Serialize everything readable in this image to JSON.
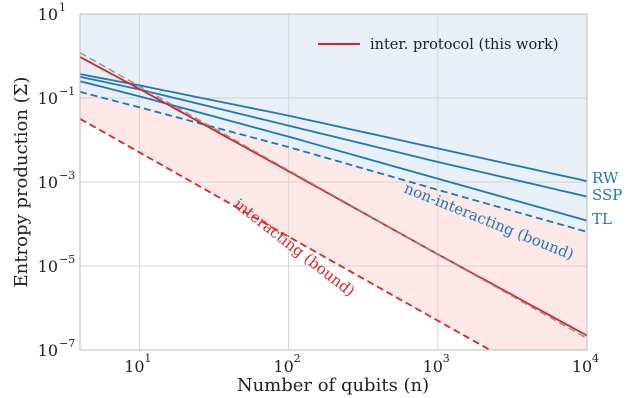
{
  "chart_data": {
    "type": "line",
    "xlabel": "Number of qubits (n)",
    "ylabel": "Entropy production (Σ)",
    "xscale": "log",
    "yscale": "log",
    "xlim": [
      4,
      10000
    ],
    "ylim": [
      1e-07,
      10
    ],
    "grid": true,
    "legend_position": "top-right",
    "x_ticks": [
      {
        "base": "10",
        "exp": "1",
        "value": 10
      },
      {
        "base": "10",
        "exp": "2",
        "value": 100
      },
      {
        "base": "10",
        "exp": "3",
        "value": 1000
      },
      {
        "base": "10",
        "exp": "4",
        "value": 10000
      }
    ],
    "y_ticks": [
      {
        "base": "10",
        "exp": "1",
        "value": 10
      },
      {
        "base": "10",
        "exp": "−1",
        "value": 0.1
      },
      {
        "base": "10",
        "exp": "−3",
        "value": 0.001
      },
      {
        "base": "10",
        "exp": "−5",
        "value": 1e-05
      },
      {
        "base": "10",
        "exp": "−7",
        "value": 1e-07
      }
    ],
    "legend": [
      {
        "label": "inter. protocol (this work)",
        "color": "#d62728"
      }
    ],
    "colors": {
      "blue": "#1f77b4",
      "red": "#d62728",
      "blue_fill": "#e8eff6",
      "red_fill": "#fde8e8",
      "gray": "#8c8c8c"
    },
    "series": [
      {
        "name": "RW",
        "color": "#1f77b4",
        "style": "solid",
        "x": [
          4,
          10,
          100,
          1000,
          10000
        ],
        "y": [
          0.37,
          0.2,
          0.038,
          0.0063,
          0.00105
        ]
      },
      {
        "name": "SSP",
        "color": "#1f77b4",
        "style": "solid",
        "x": [
          4,
          10,
          100,
          1000,
          10000
        ],
        "y": [
          0.32,
          0.16,
          0.022,
          0.003,
          0.00045
        ]
      },
      {
        "name": "TL",
        "color": "#1f77b4",
        "style": "solid",
        "x": [
          4,
          10,
          100,
          1000,
          10000
        ],
        "y": [
          0.25,
          0.11,
          0.012,
          0.0012,
          0.00012
        ]
      },
      {
        "name": "non-interacting (bound)",
        "color": "#1f77b4",
        "style": "dashed",
        "x": [
          4,
          10,
          100,
          1000,
          10000
        ],
        "y": [
          0.14,
          0.06,
          0.0068,
          0.00065,
          6.5e-05
        ]
      },
      {
        "name": "inter. protocol (this work)",
        "color": "#d62728",
        "style": "solid",
        "x": [
          4,
          10,
          100,
          1000,
          10000
        ],
        "y": [
          0.95,
          0.165,
          0.0018,
          1.9e-05,
          2.2e-07
        ]
      },
      {
        "name": "",
        "color": "#8c8c8c",
        "style": "dashed",
        "x": [
          4,
          10,
          100,
          1000,
          10000
        ],
        "y": [
          1.2,
          0.19,
          0.0019,
          1.9e-05,
          1.9e-07
        ]
      },
      {
        "name": "interacting (bound)",
        "color": "#d62728",
        "style": "dashed",
        "x": [
          4,
          100,
          1000,
          10000
        ],
        "y": [
          0.032,
          5e-05,
          5e-07,
          5e-09
        ]
      }
    ],
    "annotations": [
      {
        "text": "RW",
        "color": "#1f77b4"
      },
      {
        "text": "SSP",
        "color": "#1f77b4"
      },
      {
        "text": "TL",
        "color": "#1f77b4"
      },
      {
        "text": "non-interacting (bound)",
        "color": "#1f77b4"
      },
      {
        "text": "interacting (bound)",
        "color": "#d62728"
      }
    ]
  }
}
